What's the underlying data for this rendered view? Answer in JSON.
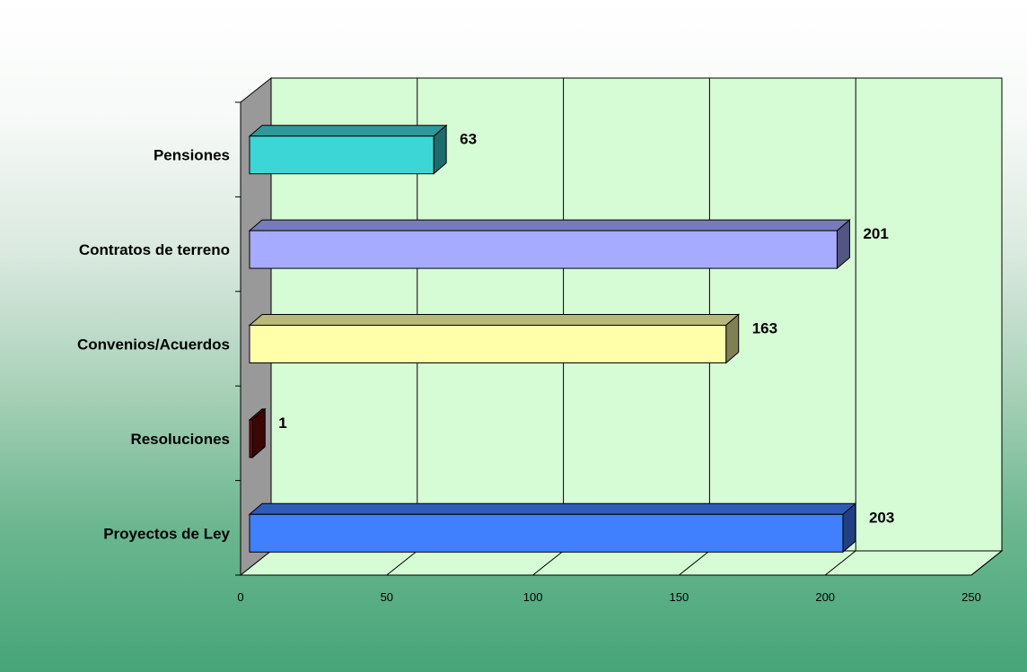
{
  "chart_data": {
    "type": "bar",
    "orientation": "horizontal",
    "three_d": true,
    "categories": [
      "Pensiones",
      "Contratos de terreno",
      "Convenios/Acuerdos",
      "Resoluciones",
      "Proyectos de Ley"
    ],
    "values": [
      63,
      201,
      163,
      1,
      203
    ],
    "value_labels": [
      "63",
      "201",
      "163",
      "1",
      "203"
    ],
    "bar_colors": [
      "#3dd6d6",
      "#a6abff",
      "#ffffaa",
      "#7a0a0a",
      "#4080ff"
    ],
    "xlim": [
      0,
      250
    ],
    "xticks": [
      "0",
      "50",
      "100",
      "150",
      "200",
      "250"
    ],
    "grid": true,
    "plot_background": "#d6fcd6",
    "title": "",
    "xlabel": "",
    "ylabel": ""
  }
}
